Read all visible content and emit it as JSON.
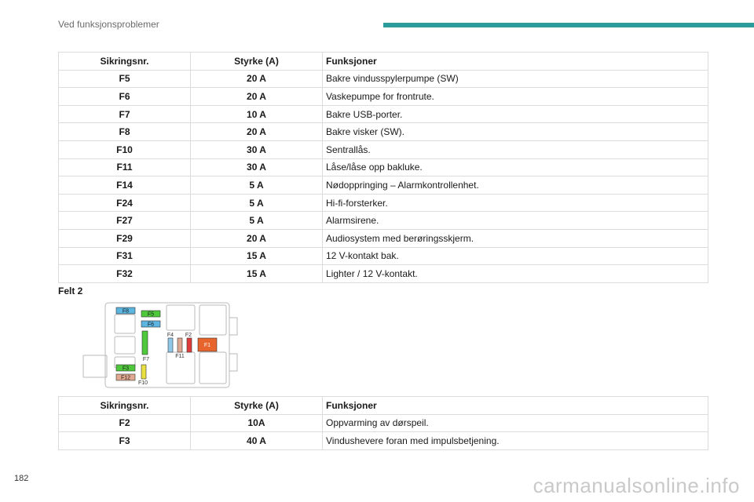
{
  "header": {
    "title": "Ved funksjonsproblemer"
  },
  "table1": {
    "headers": [
      "Sikringsnr.",
      "Styrke (A)",
      "Funksjoner"
    ],
    "rows": [
      [
        "F5",
        "20 A",
        "Bakre vindusspylerpumpe (SW)"
      ],
      [
        "F6",
        "20 A",
        "Vaskepumpe for frontrute."
      ],
      [
        "F7",
        "10 A",
        "Bakre USB-porter."
      ],
      [
        "F8",
        "20 A",
        "Bakre visker (SW)."
      ],
      [
        "F10",
        "30 A",
        "Sentrallås."
      ],
      [
        "F11",
        "30 A",
        "Låse/låse opp bakluke."
      ],
      [
        "F14",
        "5 A",
        "Nødoppringing – Alarmkontrollenhet."
      ],
      [
        "F24",
        "5 A",
        "Hi-fi-forsterker."
      ],
      [
        "F27",
        "5 A",
        "Alarmsirene."
      ],
      [
        "F29",
        "20 A",
        "Audiosystem med berøringsskjerm."
      ],
      [
        "F31",
        "15 A",
        "12 V-kontakt bak."
      ],
      [
        "F32",
        "15 A",
        "Lighter / 12 V-kontakt."
      ]
    ]
  },
  "section_label": "Felt 2",
  "diagram": {
    "labels": {
      "f8": "F8",
      "f5": "F5",
      "f6": "F6",
      "f4": "F4",
      "f2": "F2",
      "f1": "F1",
      "f7": "F7",
      "f11": "F11",
      "f3": "F3",
      "f12": "F12",
      "f10": "F10"
    },
    "colors": {
      "f8": "#5bb5e0",
      "f5": "#4fc83c",
      "f6": "#5bb5e0",
      "f7": "#4fc83c",
      "f4": "#8fc8e8",
      "f2_a": "#e0a890",
      "f2_b": "#e03b3b",
      "f1": "#e8642d",
      "f3": "#4fc83c",
      "f12": "#e0a890",
      "f10": "#e8e040"
    }
  },
  "table2": {
    "headers": [
      "Sikringsnr.",
      "Styrke (A)",
      "Funksjoner"
    ],
    "rows": [
      [
        "F2",
        "10A",
        "Oppvarming av dørspeil."
      ],
      [
        "F3",
        "40 A",
        "Vindushevere foran med impulsbetjening."
      ]
    ]
  },
  "footer": {
    "page_number": "182",
    "watermark": "carmanualsonline.info"
  }
}
